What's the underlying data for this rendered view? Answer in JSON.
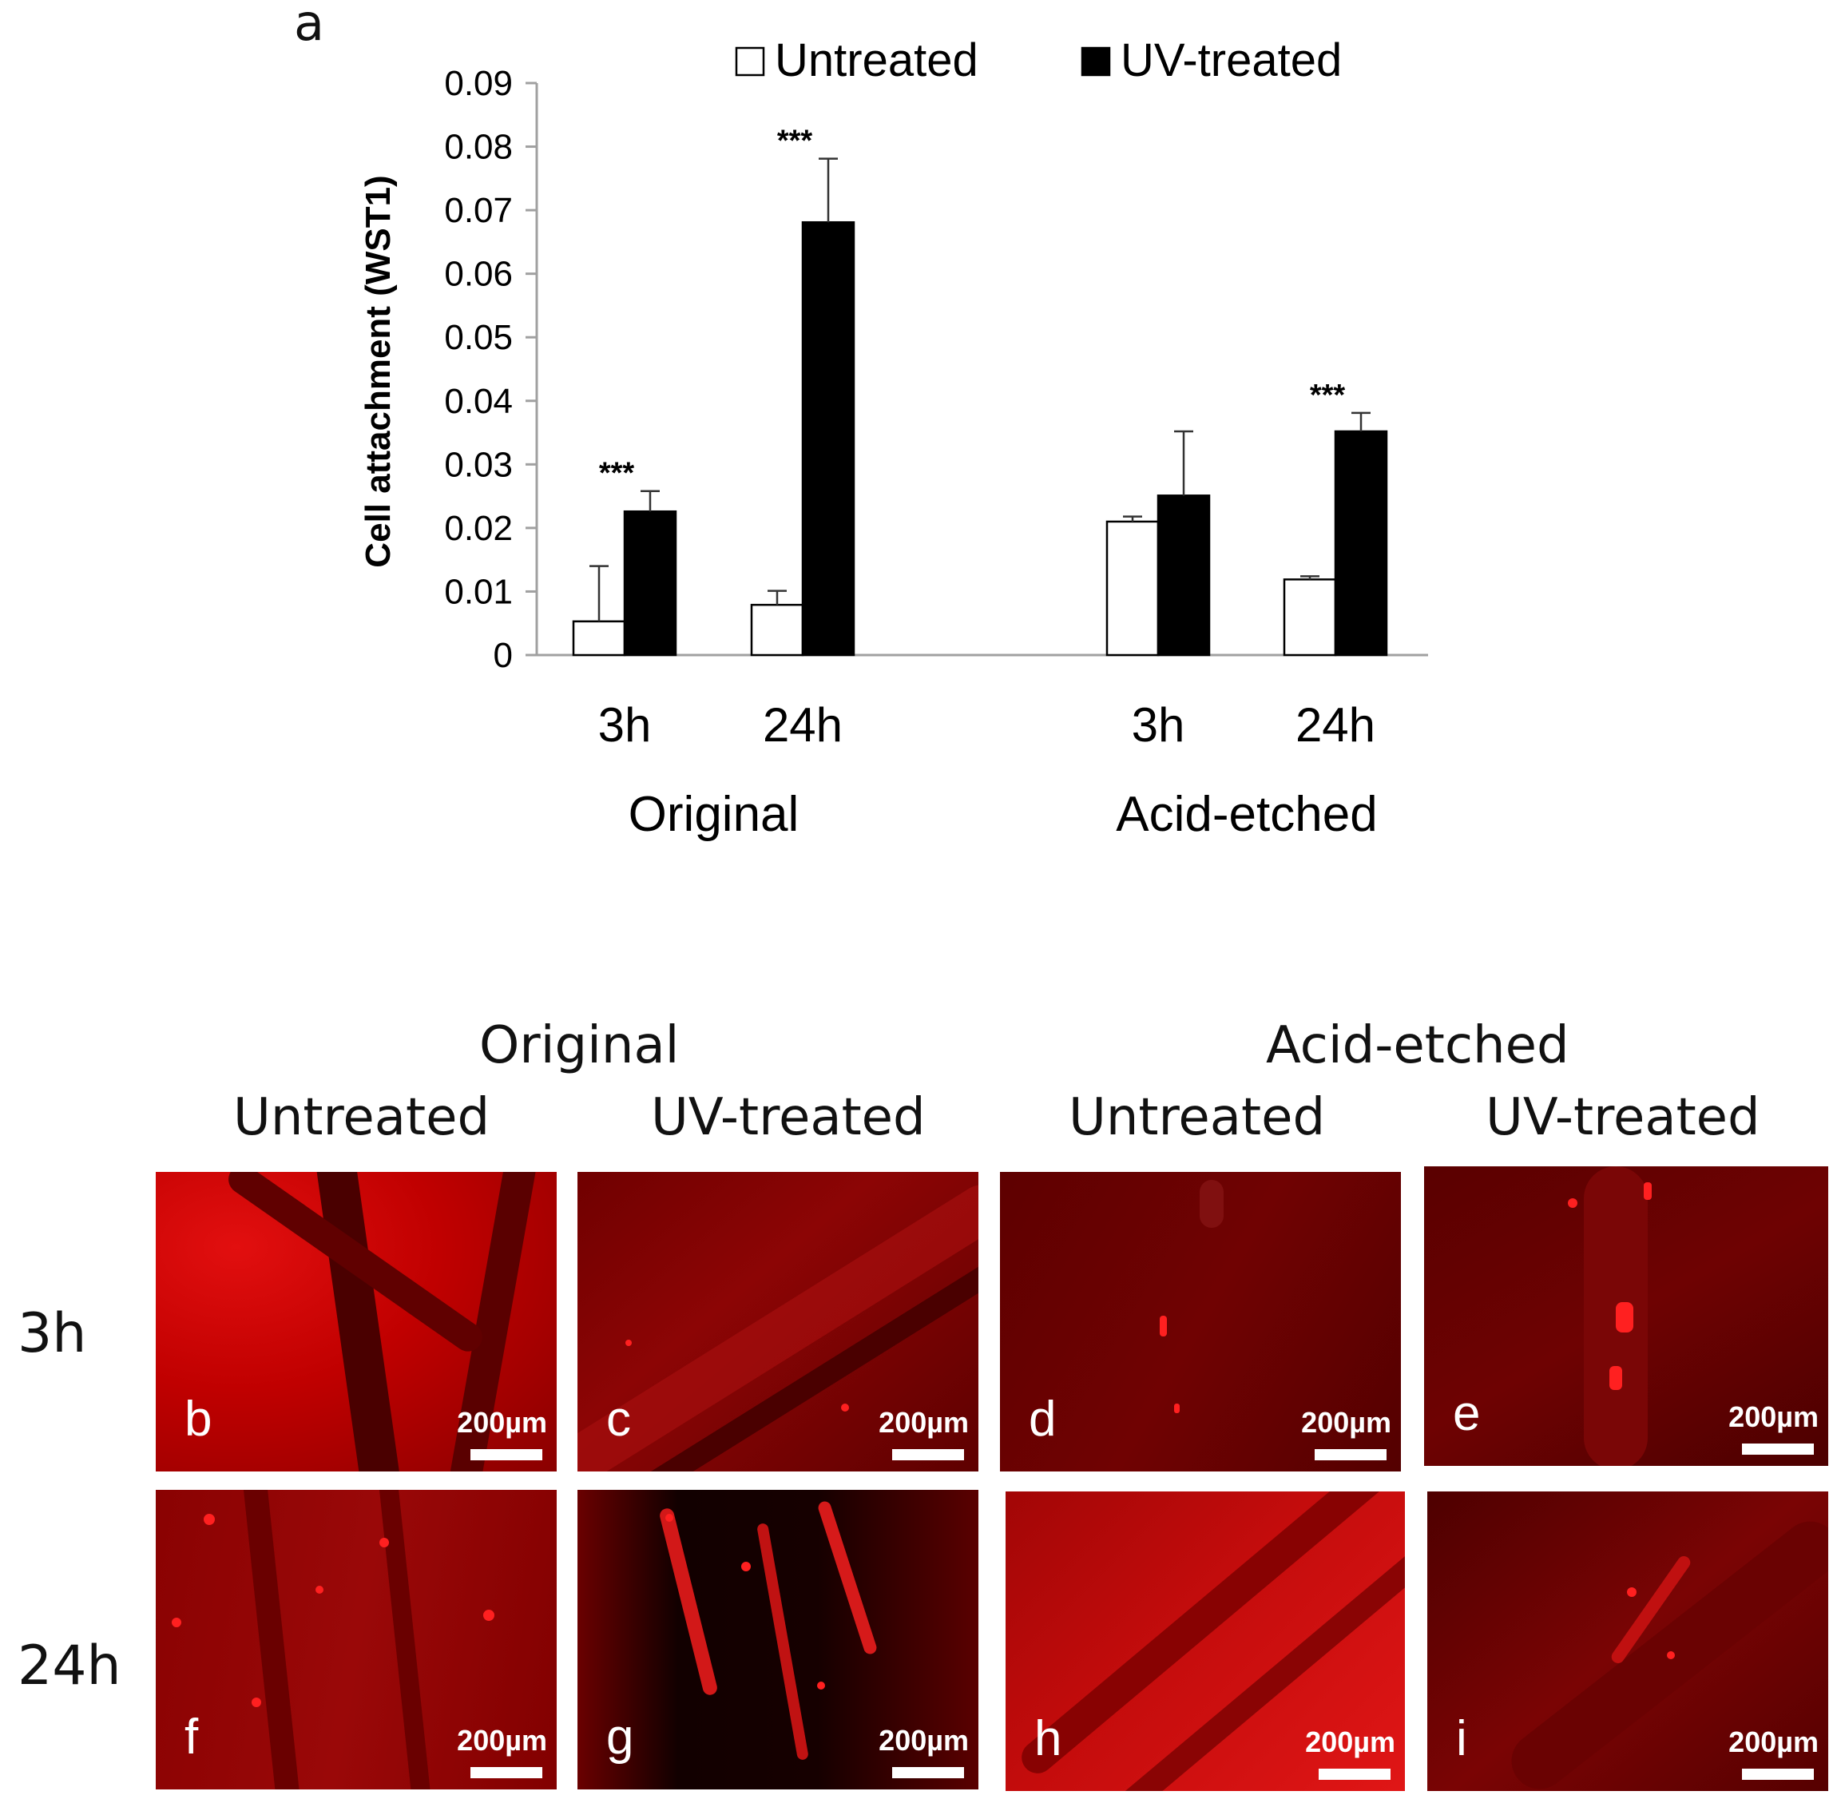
{
  "panel_a": {
    "letter": "a",
    "significance_marker": "***"
  },
  "chart_data": {
    "type": "bar",
    "title": "",
    "ylabel": "Cell attachment (WST1)",
    "xlabel": "",
    "ylim": [
      0,
      0.09
    ],
    "yticks": [
      "0",
      "0.01",
      "0.02",
      "0.03",
      "0.04",
      "0.05",
      "0.06",
      "0.07",
      "0.08",
      "0.09"
    ],
    "legend": {
      "placement": "top-center",
      "entries": [
        "Untreated",
        "UV-treated"
      ]
    },
    "grid": false,
    "groups": [
      {
        "name": "Original",
        "categories": [
          "3h",
          "24h"
        ],
        "series": [
          {
            "name": "Untreated",
            "values": [
              0.0053,
              0.0079
            ],
            "errors": [
              0.0087,
              0.0022
            ]
          },
          {
            "name": "UV-treated",
            "values": [
              0.0226,
              0.0681
            ],
            "errors": [
              0.0032,
              0.01
            ]
          }
        ],
        "annotations": [
          "***",
          "***"
        ]
      },
      {
        "name": "Acid-etched",
        "categories": [
          "3h",
          "24h"
        ],
        "series": [
          {
            "name": "Untreated",
            "values": [
              0.021,
              0.0119
            ],
            "errors": [
              0.0008,
              0.0005
            ]
          },
          {
            "name": "UV-treated",
            "values": [
              0.0251,
              0.0352
            ],
            "errors": [
              0.0101,
              0.0029
            ]
          }
        ],
        "annotations": [
          "",
          "***"
        ]
      }
    ],
    "colors": {
      "Untreated": "#ffffff",
      "UV-treated": "#000000"
    }
  },
  "micrographs": {
    "group_titles": [
      "Original",
      "Acid-etched"
    ],
    "column_titles": [
      "Untreated",
      "UV-treated",
      "Untreated",
      "UV-treated"
    ],
    "row_titles": [
      "3h",
      "24h"
    ],
    "scale_label": "200µm",
    "panels": [
      {
        "letter": "b"
      },
      {
        "letter": "c"
      },
      {
        "letter": "d"
      },
      {
        "letter": "e"
      },
      {
        "letter": "f"
      },
      {
        "letter": "g"
      },
      {
        "letter": "h"
      },
      {
        "letter": "i"
      }
    ]
  }
}
